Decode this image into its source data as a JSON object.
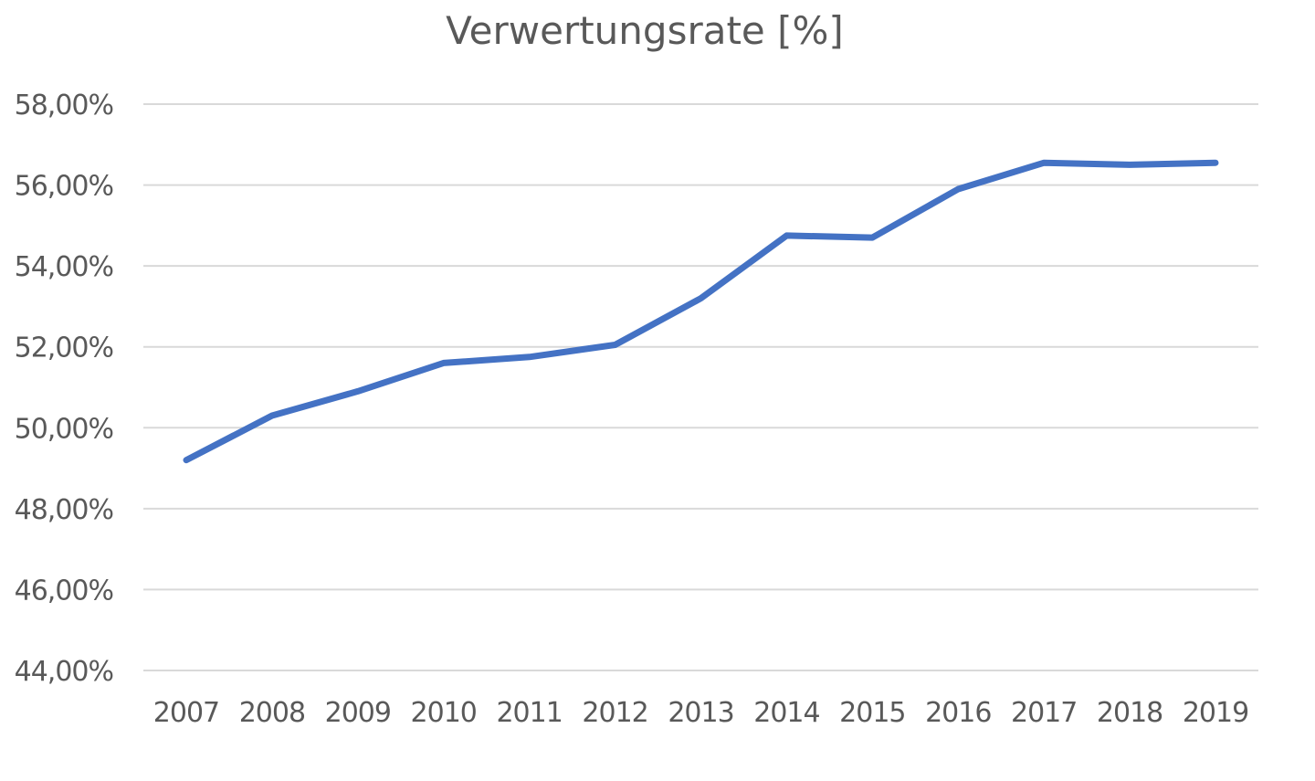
{
  "chart_data": {
    "type": "line",
    "title": "Verwertungsrate [%]",
    "xlabel": "",
    "ylabel": "",
    "categories": [
      "2007",
      "2008",
      "2009",
      "2010",
      "2011",
      "2012",
      "2013",
      "2014",
      "2015",
      "2016",
      "2017",
      "2018",
      "2019"
    ],
    "series": [
      {
        "values": [
          49.2,
          50.3,
          50.9,
          51.6,
          51.75,
          52.05,
          53.2,
          54.75,
          54.7,
          55.9,
          56.55,
          56.5,
          56.55
        ],
        "color": "#4472c4"
      }
    ],
    "ylim": [
      44,
      58
    ],
    "yticks": [
      44,
      46,
      48,
      50,
      52,
      54,
      56,
      58
    ],
    "ytick_labels": [
      "44,00%",
      "46,00%",
      "48,00%",
      "50,00%",
      "52,00%",
      "54,00%",
      "56,00%",
      "58,00%"
    ],
    "grid": true,
    "legend": "none"
  }
}
